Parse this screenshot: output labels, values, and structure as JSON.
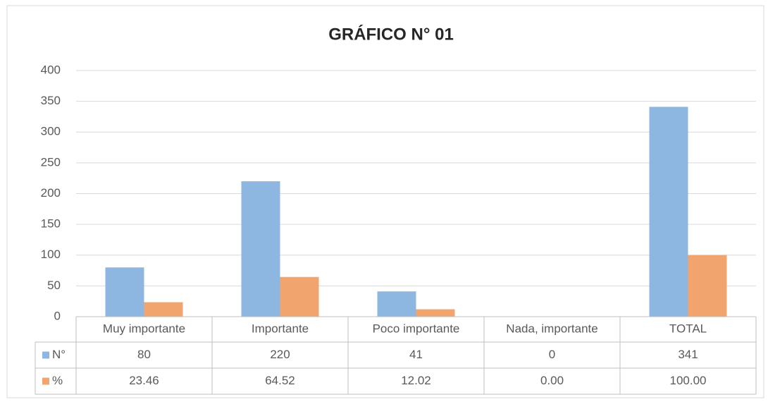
{
  "chart_data": {
    "type": "bar",
    "title": "GRÁFICO N° 01",
    "categories": [
      "Muy importante",
      "Importante",
      "Poco importante",
      "Nada, importante",
      "TOTAL"
    ],
    "series": [
      {
        "name": "N°",
        "color": "#8db6e0",
        "values": [
          80,
          220,
          41,
          0,
          341
        ]
      },
      {
        "name": "%",
        "color": "#f2a46f",
        "values": [
          23.46,
          64.52,
          12.02,
          0,
          100
        ],
        "value_labels": [
          "23.46",
          "64.52",
          "12.02",
          "0.00",
          "100.00"
        ]
      }
    ],
    "ylim": [
      0,
      400
    ],
    "yticks": [
      0,
      50,
      100,
      150,
      200,
      250,
      300,
      350,
      400
    ],
    "grid": true,
    "data_table": true
  }
}
